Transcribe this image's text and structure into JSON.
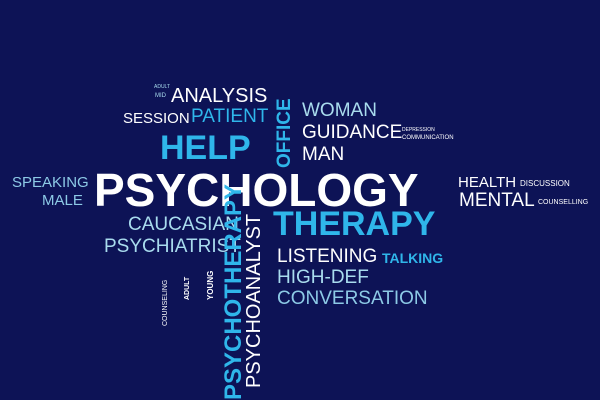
{
  "background_color": "#0d1356",
  "colors": {
    "white": "#ffffff",
    "bright_blue": "#2fb6ea",
    "light_blue": "#a9dcee",
    "muted_blue": "#8dcae6"
  },
  "words": {
    "adult_small": "ADULT",
    "mid": "MID",
    "analysis": "ANALYSIS",
    "session": "SESSION",
    "patient": "PATIENT",
    "office": "OFFICE",
    "woman": "WOMAN",
    "guidance": "GUIDANCE",
    "depression": "DEPRESSION",
    "communication": "COMMUNICATION",
    "help": "HELP",
    "man": "MAN",
    "speaking": "SPEAKING",
    "psychology": "PSYCHOLOGY",
    "health": "HEALTH",
    "discussion": "DISCUSSION",
    "male": "MALE",
    "mental": "MENTAL",
    "counselling": "COUNSELLING",
    "caucasian": "CAUCASIAN",
    "therapy": "THERAPY",
    "psychiatrist": "PSYCHIATRIST",
    "listening": "LISTENING",
    "talking": "TALKING",
    "high_def": "HIGH-DEF",
    "conversation": "CONVERSATION",
    "counseling": "COUNSELING",
    "adult": "ADULT",
    "young": "YOUNG",
    "psychotherapy": "PSYCHOTHERAPY",
    "psychoanalyst": "PSYCHOANALYST"
  }
}
